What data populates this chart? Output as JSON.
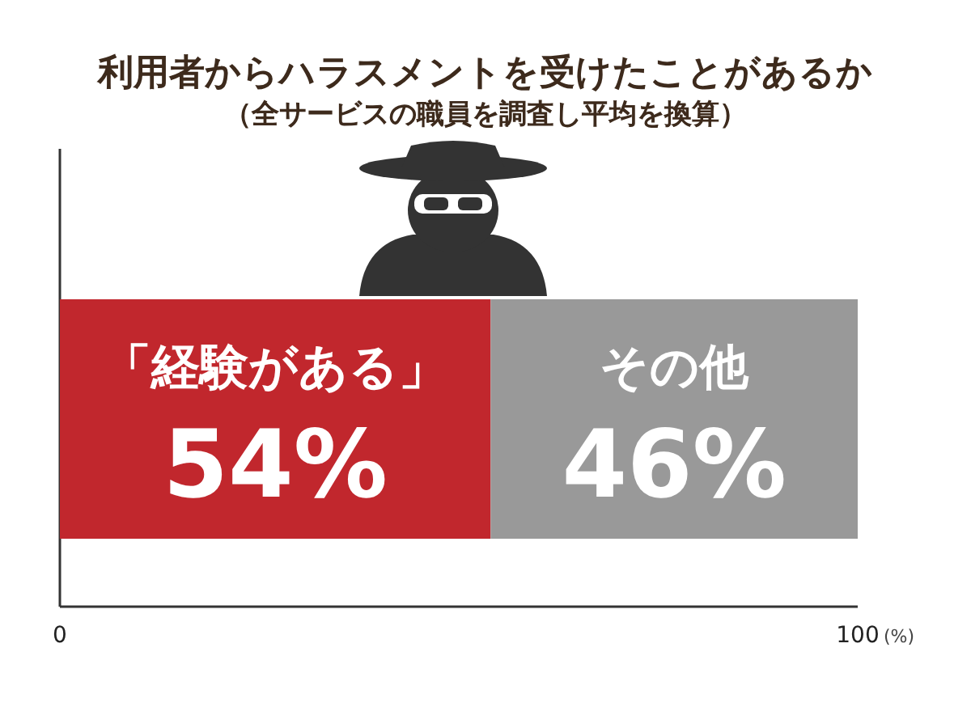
{
  "chart_data": {
    "type": "bar",
    "orientation": "horizontal",
    "stacked": true,
    "title": "利用者からハラスメントを受けたことがあるか",
    "subtitle": "（全サービスの職員を調査し平均を換算）",
    "categories": [
      null
    ],
    "series": [
      {
        "name": "「経験がある」",
        "color": "#c1272d",
        "values": [
          54
        ],
        "value_labels": [
          "54%"
        ]
      },
      {
        "name": "その他",
        "color": "#999999",
        "values": [
          46
        ],
        "value_labels": [
          "46%"
        ]
      }
    ],
    "xlim": [
      0,
      100
    ],
    "xticks": [
      0,
      100
    ],
    "xlabel": "(%)"
  }
}
